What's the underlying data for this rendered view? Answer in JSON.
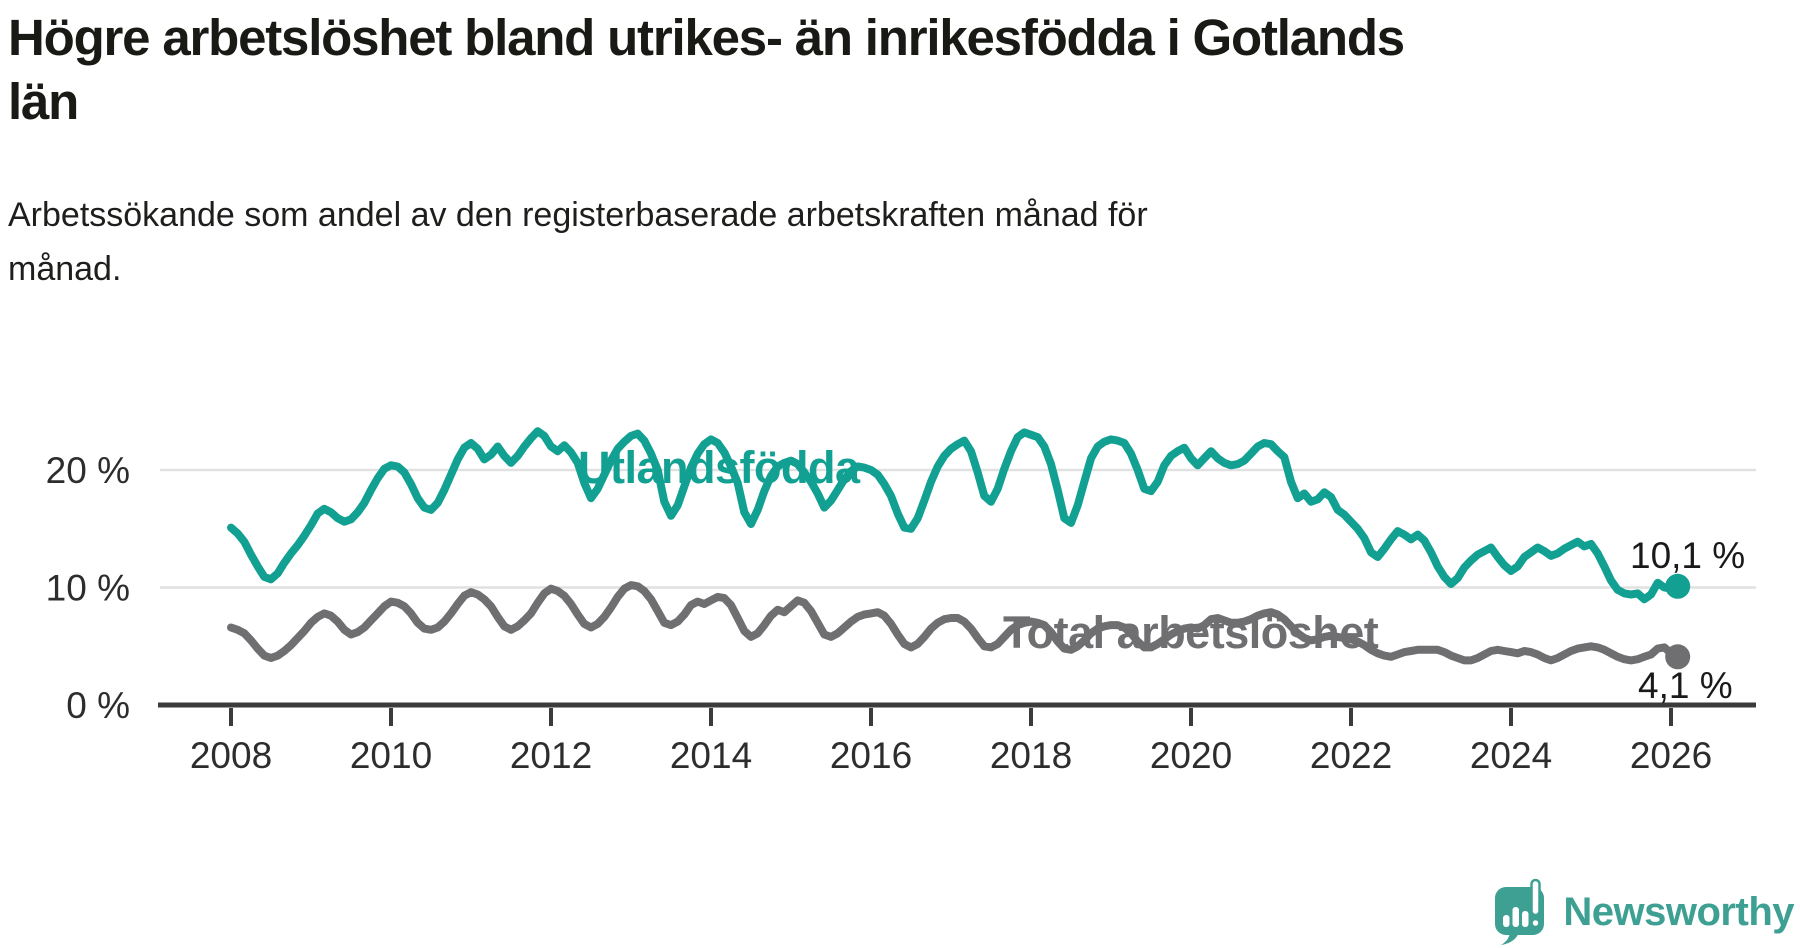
{
  "header": {
    "title": "Högre arbetslöshet bland utrikes- än inrikesfödda i Gotlands län",
    "title_lines": [
      "Högre arbetslöshet bland utrikes- än inrikesfödda i Gotlands",
      "län"
    ],
    "subtitle": "Arbetssökande som andel av den registerbaserade arbetskraften månad för månad.",
    "subtitle_lines": [
      "Arbetssökande som andel av den registerbaserade arbetskraften månad för",
      "månad."
    ]
  },
  "footer": {
    "logo_icon": "newsworthy-speech-bubble-bar-chart-icon",
    "logo_text": "Newsworthy",
    "logo_color": "#3DA093"
  },
  "chart_data": {
    "type": "line",
    "title": "Högre arbetslöshet bland utrikes- än inrikesfödda i Gotlands län",
    "subtitle": "Arbetssökande som andel av den registerbaserade arbetskraften månad för månad.",
    "x_start": "2008-01",
    "x_end": "2026-02",
    "x_frequency": "monthly",
    "x_tick_labels": [
      "2008",
      "2010",
      "2012",
      "2014",
      "2016",
      "2018",
      "2020",
      "2022",
      "2024",
      "2026"
    ],
    "y_ticks": [
      {
        "value": 0,
        "label": "0 %"
      },
      {
        "value": 10,
        "label": "10 %"
      },
      {
        "value": 20,
        "label": "20 %"
      }
    ],
    "y_gridlines": [
      10,
      20
    ],
    "ylim": [
      0,
      24.5
    ],
    "grid": "horizontal",
    "legend_position": "inline-labels",
    "grid_color": "#E1E1E1",
    "axis_color": "#3B3B3B",
    "tick_label_color": "#2D2D2D",
    "value_label_color": "#1A1A1A",
    "series": [
      {
        "name": "Utlandsfödda",
        "color": "#12A092",
        "end_label": "10,1 %",
        "end_value": 10.1,
        "values": [
          15.1,
          14.6,
          13.9,
          12.8,
          11.8,
          10.9,
          10.7,
          11.2,
          12.1,
          12.9,
          13.6,
          14.4,
          15.3,
          16.3,
          16.7,
          16.4,
          15.9,
          15.6,
          15.8,
          16.4,
          17.2,
          18.3,
          19.3,
          20.1,
          20.4,
          20.3,
          19.8,
          18.8,
          17.6,
          16.8,
          16.6,
          17.2,
          18.3,
          19.6,
          20.9,
          21.9,
          22.3,
          21.8,
          20.9,
          21.3,
          22.0,
          21.2,
          20.6,
          21.2,
          22.0,
          22.7,
          23.3,
          22.9,
          22.0,
          21.6,
          22.1,
          21.5,
          20.6,
          18.9,
          17.6,
          18.4,
          19.6,
          20.8,
          21.8,
          22.4,
          22.9,
          23.1,
          22.5,
          21.4,
          20.0,
          17.3,
          16.1,
          17.0,
          18.6,
          20.2,
          21.4,
          22.2,
          22.6,
          22.3,
          21.5,
          20.3,
          18.9,
          16.4,
          15.4,
          16.6,
          18.2,
          19.5,
          20.3,
          20.6,
          20.8,
          20.5,
          19.8,
          19.0,
          18.0,
          16.8,
          17.4,
          18.3,
          19.2,
          19.9,
          20.3,
          20.2,
          20.0,
          19.6,
          18.8,
          17.8,
          16.3,
          15.1,
          15.0,
          15.9,
          17.4,
          19.0,
          20.3,
          21.2,
          21.8,
          22.2,
          22.5,
          21.6,
          19.8,
          17.8,
          17.3,
          18.4,
          20.1,
          21.6,
          22.8,
          23.2,
          23.0,
          22.8,
          22.0,
          20.5,
          18.3,
          15.9,
          15.5,
          17.0,
          19.0,
          21.0,
          22.0,
          22.4,
          22.6,
          22.5,
          22.3,
          21.4,
          20.0,
          18.4,
          18.2,
          19.0,
          20.4,
          21.2,
          21.6,
          21.9,
          21.0,
          20.4,
          21.0,
          21.6,
          21.0,
          20.6,
          20.4,
          20.5,
          20.8,
          21.4,
          22.0,
          22.3,
          22.2,
          21.6,
          21.1,
          19.0,
          17.6,
          18.0,
          17.3,
          17.5,
          18.1,
          17.7,
          16.6,
          16.2,
          15.6,
          15.0,
          14.2,
          13.0,
          12.6,
          13.3,
          14.1,
          14.8,
          14.5,
          14.1,
          14.5,
          14.0,
          13.0,
          11.8,
          10.9,
          10.3,
          10.8,
          11.7,
          12.3,
          12.8,
          13.1,
          13.4,
          12.6,
          11.9,
          11.4,
          11.8,
          12.6,
          13.0,
          13.4,
          13.1,
          12.7,
          12.9,
          13.3,
          13.6,
          13.9,
          13.5,
          13.7,
          12.9,
          11.8,
          10.6,
          9.8,
          9.5,
          9.4,
          9.5,
          9.0,
          9.4,
          10.4,
          10.0,
          9.9,
          10.1
        ]
      },
      {
        "name": "Total arbetslöshet",
        "color": "#6F6F71",
        "end_label": "4,1 %",
        "end_value": 4.1,
        "values": [
          6.6,
          6.4,
          6.1,
          5.5,
          4.8,
          4.2,
          4.0,
          4.2,
          4.6,
          5.1,
          5.7,
          6.3,
          7.0,
          7.5,
          7.8,
          7.6,
          7.1,
          6.4,
          6.0,
          6.2,
          6.6,
          7.2,
          7.8,
          8.4,
          8.8,
          8.7,
          8.4,
          7.8,
          7.0,
          6.5,
          6.4,
          6.6,
          7.1,
          7.8,
          8.6,
          9.3,
          9.6,
          9.4,
          9.0,
          8.4,
          7.5,
          6.7,
          6.4,
          6.7,
          7.2,
          7.8,
          8.7,
          9.5,
          9.9,
          9.7,
          9.3,
          8.6,
          7.7,
          6.9,
          6.6,
          6.9,
          7.5,
          8.3,
          9.2,
          9.9,
          10.2,
          10.1,
          9.7,
          9.0,
          8.0,
          7.0,
          6.8,
          7.1,
          7.7,
          8.5,
          8.8,
          8.6,
          8.9,
          9.2,
          9.1,
          8.5,
          7.4,
          6.3,
          5.8,
          6.1,
          6.8,
          7.6,
          8.1,
          7.9,
          8.4,
          8.9,
          8.7,
          8.0,
          7.0,
          6.0,
          5.8,
          6.1,
          6.6,
          7.1,
          7.5,
          7.7,
          7.8,
          7.9,
          7.6,
          6.9,
          6.0,
          5.2,
          4.9,
          5.2,
          5.8,
          6.5,
          7.0,
          7.3,
          7.4,
          7.4,
          7.1,
          6.5,
          5.7,
          5.0,
          4.9,
          5.2,
          5.8,
          6.4,
          6.8,
          7.0,
          7.1,
          7.0,
          6.8,
          6.2,
          5.4,
          4.8,
          4.7,
          5.0,
          5.5,
          6.1,
          6.5,
          6.7,
          6.8,
          6.8,
          6.6,
          6.1,
          5.4,
          4.9,
          4.9,
          5.2,
          5.6,
          6.0,
          6.3,
          6.5,
          6.6,
          6.5,
          6.8,
          7.3,
          7.4,
          7.2,
          7.0,
          7.0,
          7.1,
          7.3,
          7.6,
          7.8,
          7.9,
          7.7,
          7.3,
          6.7,
          6.1,
          5.7,
          5.5,
          5.6,
          5.8,
          5.9,
          5.8,
          5.7,
          5.6,
          5.4,
          5.1,
          4.7,
          4.4,
          4.2,
          4.1,
          4.3,
          4.5,
          4.6,
          4.7,
          4.7,
          4.7,
          4.7,
          4.5,
          4.2,
          4.0,
          3.8,
          3.8,
          4.0,
          4.3,
          4.6,
          4.7,
          4.6,
          4.5,
          4.4,
          4.6,
          4.5,
          4.3,
          4.0,
          3.8,
          4.0,
          4.3,
          4.6,
          4.8,
          4.9,
          5.0,
          4.9,
          4.7,
          4.4,
          4.1,
          3.9,
          3.8,
          3.9,
          4.1,
          4.3,
          4.8,
          4.9,
          4.4,
          4.1
        ]
      }
    ]
  }
}
